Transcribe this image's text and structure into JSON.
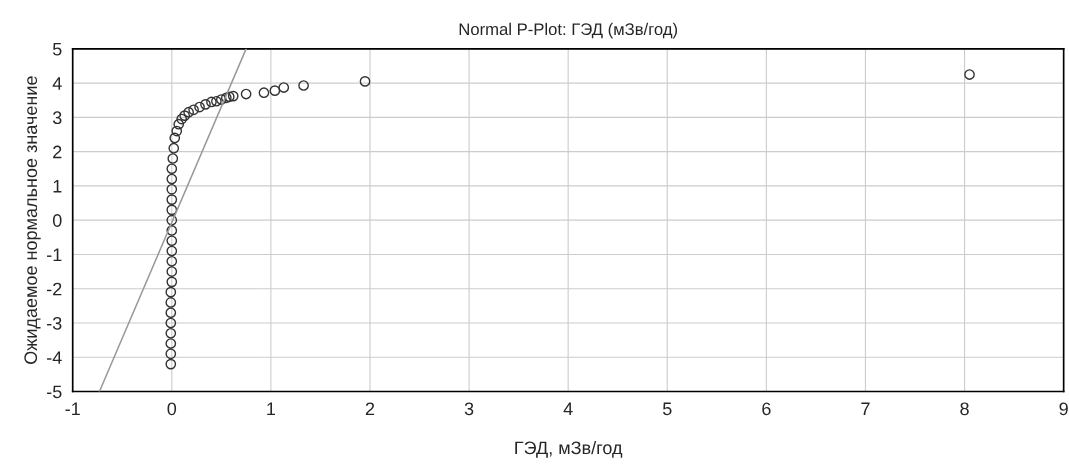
{
  "chart_data": {
    "type": "scatter",
    "title": "Normal P-Plot: ГЭД (мЗв/год)",
    "xlabel": "ГЭД, мЗв/год",
    "ylabel": "Ожидаемое нормальное значение",
    "series": [
      {
        "color": "#333333",
        "marker": "circle",
        "x": [
          -0.01,
          -0.01,
          -0.01,
          -0.01,
          -0.01,
          -0.01,
          -0.01,
          -0.01,
          0,
          0,
          0,
          0,
          0,
          0,
          0,
          0,
          0,
          0,
          0,
          0,
          0.01,
          0.02,
          0.03,
          0.05,
          0.07,
          0.1,
          0.13,
          0.17,
          0.22,
          0.28,
          0.34,
          0.4,
          0.45,
          0.5,
          0.55,
          0.58,
          0.62,
          0.75,
          0.93,
          1.04,
          1.13,
          1.33,
          1.95,
          8.05
        ],
        "values": [
          -4.2,
          -3.9,
          -3.6,
          -3.3,
          -3.0,
          -2.7,
          -2.4,
          -2.1,
          -1.8,
          -1.5,
          -1.2,
          -0.9,
          -0.6,
          -0.3,
          0,
          0.3,
          0.6,
          0.9,
          1.2,
          1.5,
          1.8,
          2.1,
          2.4,
          2.6,
          2.8,
          2.95,
          3.05,
          3.15,
          3.22,
          3.3,
          3.38,
          3.45,
          3.47,
          3.52,
          3.57,
          3.6,
          3.62,
          3.68,
          3.72,
          3.78,
          3.87,
          3.93,
          4.05,
          4.25
        ]
      },
      {
        "type": "line",
        "color": "#999999",
        "x": [
          -0.73,
          0.75
        ],
        "values": [
          -5,
          5
        ]
      }
    ],
    "xlim": [
      -1,
      9
    ],
    "xticks": [
      -1,
      0,
      1,
      2,
      3,
      4,
      5,
      6,
      7,
      8,
      9
    ],
    "ylim": [
      -5,
      5
    ],
    "yticks": [
      -5,
      -4,
      -3,
      -2,
      -1,
      0,
      1,
      2,
      3,
      4,
      5
    ],
    "grid": true
  }
}
